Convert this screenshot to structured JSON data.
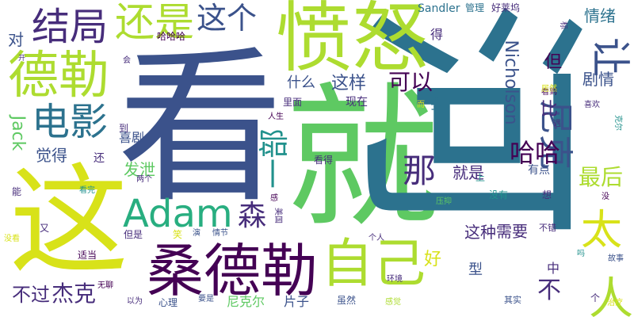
{
  "colors": {
    "c0": "#440154",
    "c1": "#472d7b",
    "c2": "#3b528b",
    "c3": "#2c728e",
    "c4": "#21918c",
    "c5": "#28ae80",
    "c6": "#5ec962",
    "c7": "#addc30",
    "c8": "#d8e219"
  },
  "words": [
    {
      "text": "看",
      "color": "c2"
    },
    {
      "text": "就",
      "color": "c6"
    },
    {
      "text": "这",
      "color": "c8"
    },
    {
      "text": "河",
      "color": "c3"
    },
    {
      "text": "愤怒",
      "color": "c7"
    },
    {
      "text": "桑德勒",
      "color": "c0"
    },
    {
      "text": "德勒",
      "color": "c7"
    },
    {
      "text": "自己",
      "color": "c7"
    },
    {
      "text": "电影",
      "color": "c3"
    },
    {
      "text": "结局",
      "color": "c1"
    },
    {
      "text": "还是",
      "color": "c7"
    },
    {
      "text": "Adam",
      "color": "c5"
    },
    {
      "text": "一部",
      "color": "c4"
    },
    {
      "text": "那",
      "color": "c1"
    },
    {
      "text": "人",
      "color": "c7"
    },
    {
      "text": "太",
      "color": "c8"
    },
    {
      "text": "这个",
      "color": "c2"
    },
    {
      "text": "尼克",
      "color": "c2"
    },
    {
      "text": "让",
      "color": "c2"
    },
    {
      "text": "森",
      "color": "c1"
    },
    {
      "text": "哈哈",
      "color": "c0"
    },
    {
      "text": "最后",
      "color": "c7"
    },
    {
      "text": "不",
      "color": "c1"
    },
    {
      "text": "不过",
      "color": "c1"
    },
    {
      "text": "杰克",
      "color": "c1"
    },
    {
      "text": "Nicholson",
      "color": "c2"
    },
    {
      "text": "Jack",
      "color": "c6"
    },
    {
      "text": "对",
      "color": "c2"
    },
    {
      "text": "可以",
      "color": "c0"
    },
    {
      "text": "这样",
      "color": "c2"
    },
    {
      "text": "觉得",
      "color": "c2"
    },
    {
      "text": "情绪",
      "color": "c3"
    },
    {
      "text": "剧情",
      "color": "c2"
    },
    {
      "text": "这种",
      "color": "c1"
    },
    {
      "text": "需要",
      "color": "c1"
    },
    {
      "text": "就是",
      "color": "c1"
    },
    {
      "text": "发泄",
      "color": "c6"
    },
    {
      "text": "喜剧",
      "color": "c2"
    },
    {
      "text": "什么",
      "color": "c2"
    },
    {
      "text": "但",
      "color": "c0"
    },
    {
      "text": "比",
      "color": "c1"
    },
    {
      "text": "要",
      "color": "c3"
    },
    {
      "text": "好",
      "color": "c8"
    },
    {
      "text": "型",
      "color": "c2"
    },
    {
      "text": "中",
      "color": "c1"
    },
    {
      "text": "片子",
      "color": "c2"
    },
    {
      "text": "尼克尔",
      "color": "c6"
    },
    {
      "text": "有点",
      "color": "c2"
    },
    {
      "text": "现在",
      "color": "c1"
    },
    {
      "text": "得",
      "color": "c1"
    },
    {
      "text": "Sandler",
      "color": "c3"
    },
    {
      "text": "管理",
      "color": "c3"
    },
    {
      "text": "好莱坞",
      "color": "c1"
    },
    {
      "text": "哈哈哈",
      "color": "c0"
    },
    {
      "text": "看得",
      "color": "c1"
    },
    {
      "text": "人生",
      "color": "c0"
    },
    {
      "text": "看到",
      "color": "c0"
    },
    {
      "text": "居然",
      "color": "c8"
    },
    {
      "text": "喜欢",
      "color": "c1"
    },
    {
      "text": "遇",
      "color": "c1"
    },
    {
      "text": "里面",
      "color": "c1"
    },
    {
      "text": "到",
      "color": "c1"
    },
    {
      "text": "还",
      "color": "c1"
    },
    {
      "text": "上",
      "color": "c4"
    },
    {
      "text": "没有",
      "color": "c4"
    },
    {
      "text": "想",
      "color": "c1"
    },
    {
      "text": "能",
      "color": "c1"
    },
    {
      "text": "看完",
      "color": "c4"
    },
    {
      "text": "两个",
      "color": "c1"
    },
    {
      "text": "又",
      "color": "c1"
    },
    {
      "text": "没看",
      "color": "c8"
    },
    {
      "text": "但是",
      "color": "c1"
    },
    {
      "text": "笑",
      "color": "c8"
    },
    {
      "text": "演",
      "color": "c2"
    },
    {
      "text": "情节",
      "color": "c2"
    },
    {
      "text": "个人",
      "color": "c1"
    },
    {
      "text": "不错",
      "color": "c1"
    },
    {
      "text": "吗",
      "color": "c4"
    },
    {
      "text": "故事",
      "color": "c2"
    },
    {
      "text": "适当",
      "color": "c0"
    },
    {
      "text": "无聊",
      "color": "c0"
    },
    {
      "text": "以为",
      "color": "c1"
    },
    {
      "text": "心理",
      "color": "c2"
    },
    {
      "text": "要是",
      "color": "c2"
    },
    {
      "text": "环境",
      "color": "c1"
    },
    {
      "text": "虽然",
      "color": "c2"
    },
    {
      "text": "感觉",
      "color": "c7"
    },
    {
      "text": "其实",
      "color": "c2"
    },
    {
      "text": "个",
      "color": "c1"
    },
    {
      "text": "治疗",
      "color": "c8"
    },
    {
      "text": "会",
      "color": "c1"
    },
    {
      "text": "而",
      "color": "c8"
    },
    {
      "text": "压抑",
      "color": "c6"
    },
    {
      "text": "没",
      "color": "c0"
    },
    {
      "text": "感",
      "color": "c0"
    },
    {
      "text": "美国",
      "color": "c1"
    },
    {
      "text": "开",
      "color": "c1"
    },
    {
      "text": "标",
      "color": "c1"
    },
    {
      "text": "克尔",
      "color": "c4"
    }
  ]
}
